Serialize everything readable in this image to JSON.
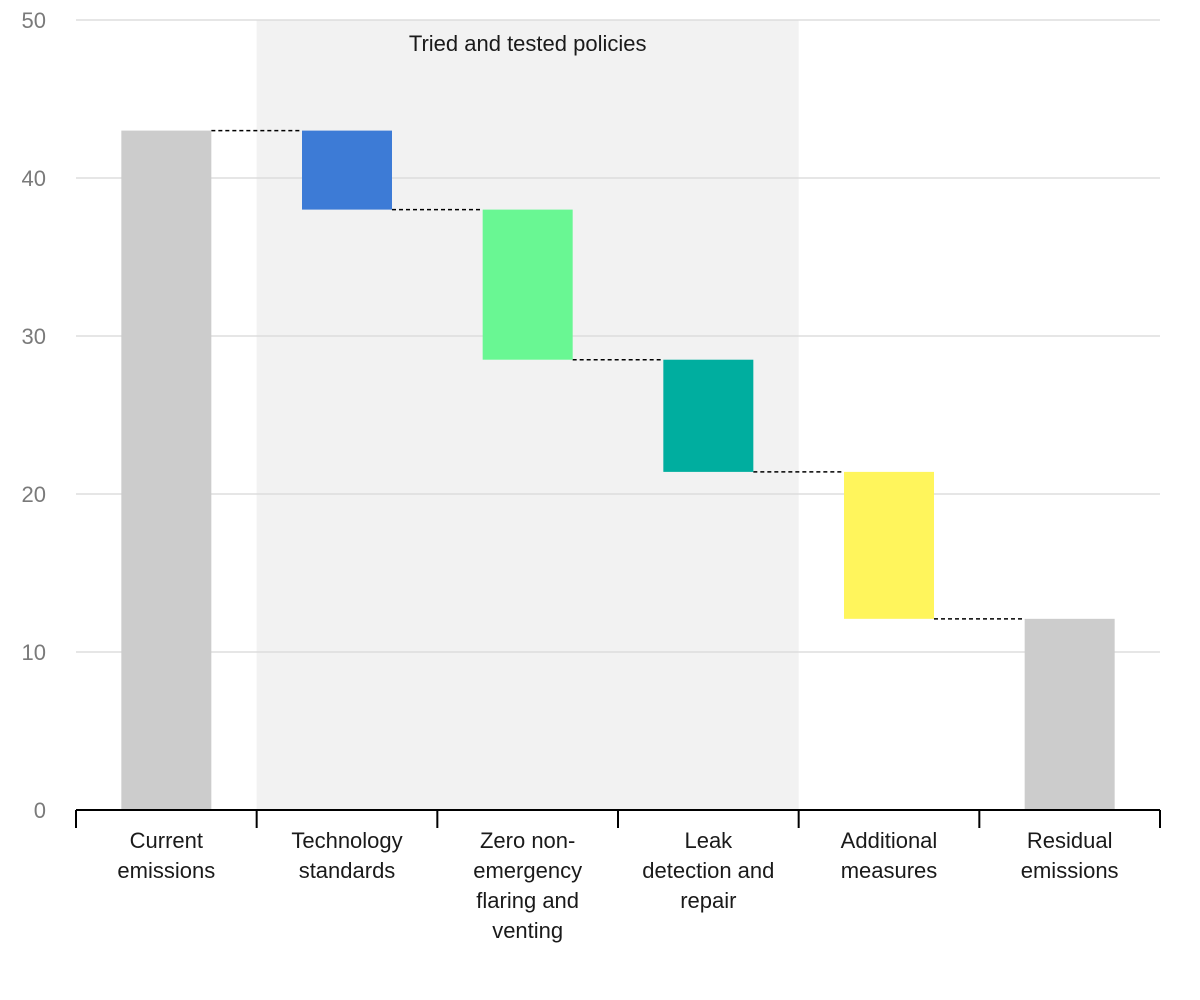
{
  "chart_data": {
    "type": "bar",
    "variant": "waterfall",
    "categories": [
      "Current emissions",
      "Technology standards",
      "Zero non-emergency flaring and venting",
      "Leak detection and repair",
      "Additional measures",
      "Residual emissions"
    ],
    "category_lines": [
      [
        "Current",
        "emissions"
      ],
      [
        "Technology",
        "standards"
      ],
      [
        "Zero non-",
        "emergency",
        "flaring and",
        "venting"
      ],
      [
        "Leak",
        "detection and",
        "repair"
      ],
      [
        "Additional",
        "measures"
      ],
      [
        "Residual",
        "emissions"
      ]
    ],
    "bars": [
      {
        "category": "Current emissions",
        "start": 0,
        "end": 43,
        "color": "#cccccc"
      },
      {
        "category": "Technology standards",
        "start": 43,
        "end": 38,
        "color": "#3d7bd6"
      },
      {
        "category": "Zero non-emergency flaring and venting",
        "start": 38,
        "end": 28.5,
        "color": "#69f793"
      },
      {
        "category": "Leak detection and repair",
        "start": 28.5,
        "end": 21.4,
        "color": "#00ae9f"
      },
      {
        "category": "Additional measures",
        "start": 21.4,
        "end": 12.1,
        "color": "#fff55c"
      },
      {
        "category": "Residual emissions",
        "start": 0,
        "end": 12.1,
        "color": "#cccccc"
      }
    ],
    "ylim": [
      0,
      50
    ],
    "yticks": [
      0,
      10,
      20,
      30,
      40,
      50
    ],
    "grid": true,
    "xlabel": "",
    "ylabel": "",
    "title": "",
    "annotation_band": {
      "label": "Tried and tested policies",
      "from_category": 1,
      "to_category": 3,
      "color": "#f2f2f2"
    },
    "connector_style": "dashed"
  }
}
